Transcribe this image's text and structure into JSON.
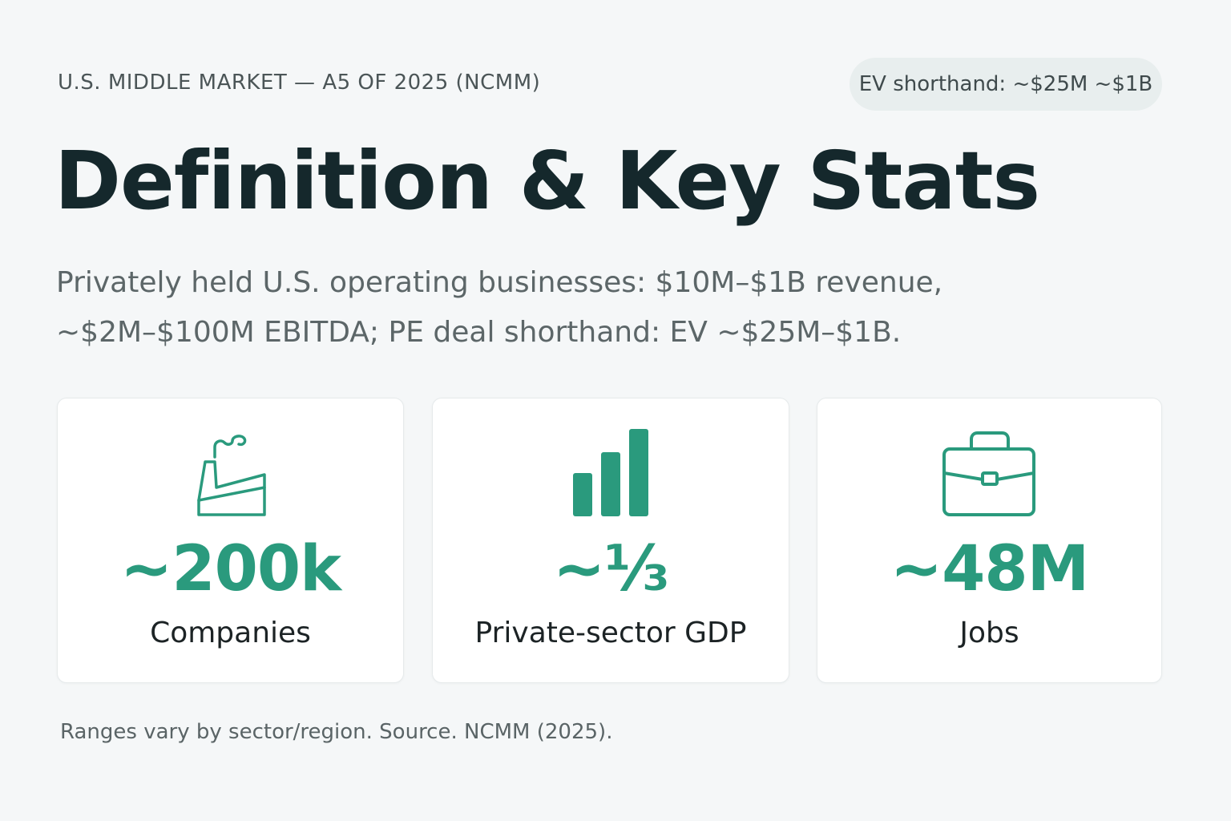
{
  "header": {
    "eyebrow": "U.S. MIDDLE MARKET — A5 OF 2025 (NCMM)",
    "pill": "EV shorthand: ~$25M ~$1B"
  },
  "title": "Definition & Key Stats",
  "subtitle": {
    "line1": "Privately held U.S. operating businesses: $10M–$1B revenue,",
    "line2": "~$2M–$100M EBITDA; PE deal shorthand: EV ~$25M–$1B."
  },
  "stats": [
    {
      "icon": "factory-icon",
      "value": "~200k",
      "label": "Companies"
    },
    {
      "icon": "bar-chart-icon",
      "value": "~⅓",
      "label": "Private-sector GDP"
    },
    {
      "icon": "briefcase-icon",
      "value": "~48M",
      "label": "Jobs"
    }
  ],
  "footnote": "Ranges vary by sector/region. Source. NCMM (2025).",
  "colors": {
    "accent": "#2a9a7d",
    "title": "#15282c",
    "background": "#f5f7f8",
    "pill_background": "#e8eeee"
  }
}
